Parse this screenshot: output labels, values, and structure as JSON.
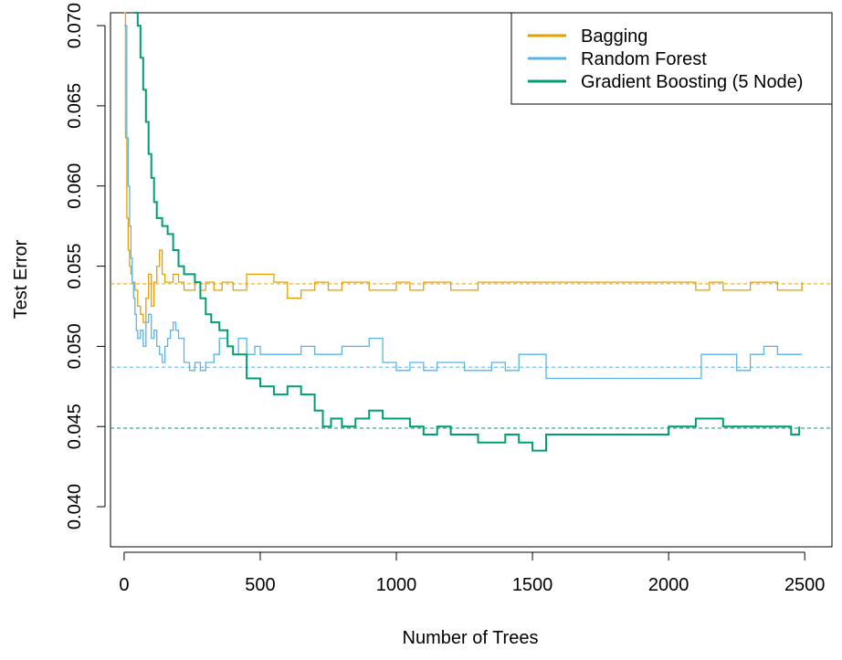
{
  "chart_data": {
    "type": "line",
    "xlabel": "Number of Trees",
    "ylabel": "Test Error",
    "xlim": [
      -50,
      2600
    ],
    "ylim": [
      0.0375,
      0.0708
    ],
    "xticks": [
      0,
      500,
      1000,
      1500,
      2000,
      2500
    ],
    "xtick_labels": [
      "0",
      "500",
      "1000",
      "1500",
      "2000",
      "2500"
    ],
    "yticks": [
      0.04,
      0.045,
      0.05,
      0.055,
      0.06,
      0.065,
      0.07
    ],
    "ytick_labels": [
      "0.040",
      "0.045",
      "0.050",
      "0.055",
      "0.060",
      "0.065",
      "0.070"
    ],
    "legend_position": "top-right",
    "series": [
      {
        "name": "Bagging",
        "color": "#E69F00",
        "line_width": 1.3,
        "x": [
          0,
          5,
          10,
          15,
          20,
          25,
          30,
          40,
          50,
          60,
          70,
          80,
          90,
          100,
          110,
          120,
          130,
          140,
          150,
          160,
          180,
          200,
          220,
          240,
          260,
          280,
          300,
          330,
          360,
          400,
          450,
          500,
          550,
          600,
          650,
          700,
          750,
          800,
          900,
          1000,
          1050,
          1100,
          1200,
          1300,
          1400,
          1500,
          1600,
          1800,
          2000,
          2100,
          2150,
          2200,
          2300,
          2400,
          2490
        ],
        "y": [
          0.0708,
          0.063,
          0.058,
          0.056,
          0.055,
          0.0545,
          0.054,
          0.0535,
          0.0525,
          0.052,
          0.0515,
          0.053,
          0.0545,
          0.0525,
          0.054,
          0.055,
          0.056,
          0.0545,
          0.054,
          0.054,
          0.0545,
          0.054,
          0.0535,
          0.0535,
          0.054,
          0.0535,
          0.054,
          0.0535,
          0.054,
          0.0535,
          0.0545,
          0.0545,
          0.054,
          0.053,
          0.0535,
          0.054,
          0.0535,
          0.054,
          0.0535,
          0.054,
          0.0535,
          0.054,
          0.0535,
          0.054,
          0.054,
          0.054,
          0.054,
          0.054,
          0.054,
          0.0535,
          0.054,
          0.0535,
          0.054,
          0.0535,
          0.054
        ]
      },
      {
        "name": "Random Forest",
        "color": "#56B4E9",
        "line_width": 1.3,
        "x": [
          0,
          10,
          15,
          20,
          25,
          30,
          35,
          40,
          45,
          50,
          60,
          70,
          80,
          90,
          100,
          110,
          120,
          130,
          140,
          150,
          160,
          170,
          180,
          190,
          200,
          220,
          240,
          260,
          280,
          300,
          330,
          350,
          380,
          400,
          420,
          450,
          480,
          500,
          550,
          600,
          650,
          700,
          750,
          800,
          850,
          900,
          950,
          1000,
          1050,
          1100,
          1150,
          1200,
          1250,
          1300,
          1350,
          1400,
          1450,
          1500,
          1550,
          1600,
          1700,
          1800,
          1900,
          2000,
          2100,
          2120,
          2200,
          2250,
          2300,
          2350,
          2400,
          2450,
          2490
        ],
        "y": [
          0.07,
          0.063,
          0.06,
          0.0575,
          0.0555,
          0.054,
          0.053,
          0.052,
          0.051,
          0.0505,
          0.051,
          0.05,
          0.0515,
          0.052,
          0.0505,
          0.051,
          0.05,
          0.0495,
          0.049,
          0.05,
          0.0505,
          0.051,
          0.0515,
          0.051,
          0.0505,
          0.049,
          0.0485,
          0.049,
          0.0485,
          0.049,
          0.0495,
          0.0505,
          0.05,
          0.0495,
          0.0505,
          0.0495,
          0.05,
          0.0495,
          0.0495,
          0.0495,
          0.05,
          0.0495,
          0.0495,
          0.05,
          0.05,
          0.0505,
          0.049,
          0.0485,
          0.049,
          0.0485,
          0.049,
          0.049,
          0.0485,
          0.0485,
          0.049,
          0.0485,
          0.0495,
          0.0495,
          0.048,
          0.048,
          0.048,
          0.048,
          0.048,
          0.048,
          0.048,
          0.0495,
          0.0495,
          0.0485,
          0.0495,
          0.05,
          0.0495,
          0.0495,
          0.0495
        ]
      },
      {
        "name": "Gradient Boosting (5 Node)",
        "color": "#009E73",
        "line_width": 2,
        "x": [
          40,
          50,
          60,
          70,
          80,
          90,
          100,
          110,
          120,
          140,
          160,
          180,
          200,
          220,
          240,
          260,
          280,
          300,
          320,
          350,
          380,
          400,
          450,
          500,
          550,
          600,
          650,
          700,
          730,
          760,
          800,
          850,
          900,
          950,
          1000,
          1050,
          1100,
          1150,
          1200,
          1250,
          1300,
          1350,
          1400,
          1450,
          1500,
          1550,
          1600,
          1650,
          1700,
          1750,
          1800,
          1850,
          1900,
          1950,
          2000,
          2050,
          2100,
          2150,
          2200,
          2250,
          2300,
          2350,
          2400,
          2450,
          2480
        ],
        "y": [
          0.0708,
          0.07,
          0.068,
          0.066,
          0.064,
          0.062,
          0.0605,
          0.059,
          0.058,
          0.0575,
          0.057,
          0.056,
          0.055,
          0.0545,
          0.0545,
          0.054,
          0.053,
          0.052,
          0.0515,
          0.051,
          0.05,
          0.0495,
          0.048,
          0.0475,
          0.047,
          0.0475,
          0.047,
          0.046,
          0.045,
          0.0455,
          0.045,
          0.0455,
          0.046,
          0.0455,
          0.0455,
          0.045,
          0.0445,
          0.045,
          0.0445,
          0.0445,
          0.044,
          0.044,
          0.0445,
          0.044,
          0.0435,
          0.0445,
          0.0445,
          0.0445,
          0.0445,
          0.0445,
          0.0445,
          0.0445,
          0.0445,
          0.0445,
          0.045,
          0.045,
          0.0455,
          0.0455,
          0.045,
          0.045,
          0.045,
          0.045,
          0.045,
          0.0445,
          0.045
        ]
      }
    ],
    "reference_lines": [
      {
        "series": "Bagging",
        "y": 0.0539,
        "color": "#E69F00",
        "style": "dashed"
      },
      {
        "series": "Random Forest",
        "y": 0.0487,
        "color": "#56B4E9",
        "style": "dashed"
      },
      {
        "series": "Gradient Boosting (5 Node)",
        "y": 0.0449,
        "color": "#009E73",
        "style": "dashed"
      }
    ]
  }
}
